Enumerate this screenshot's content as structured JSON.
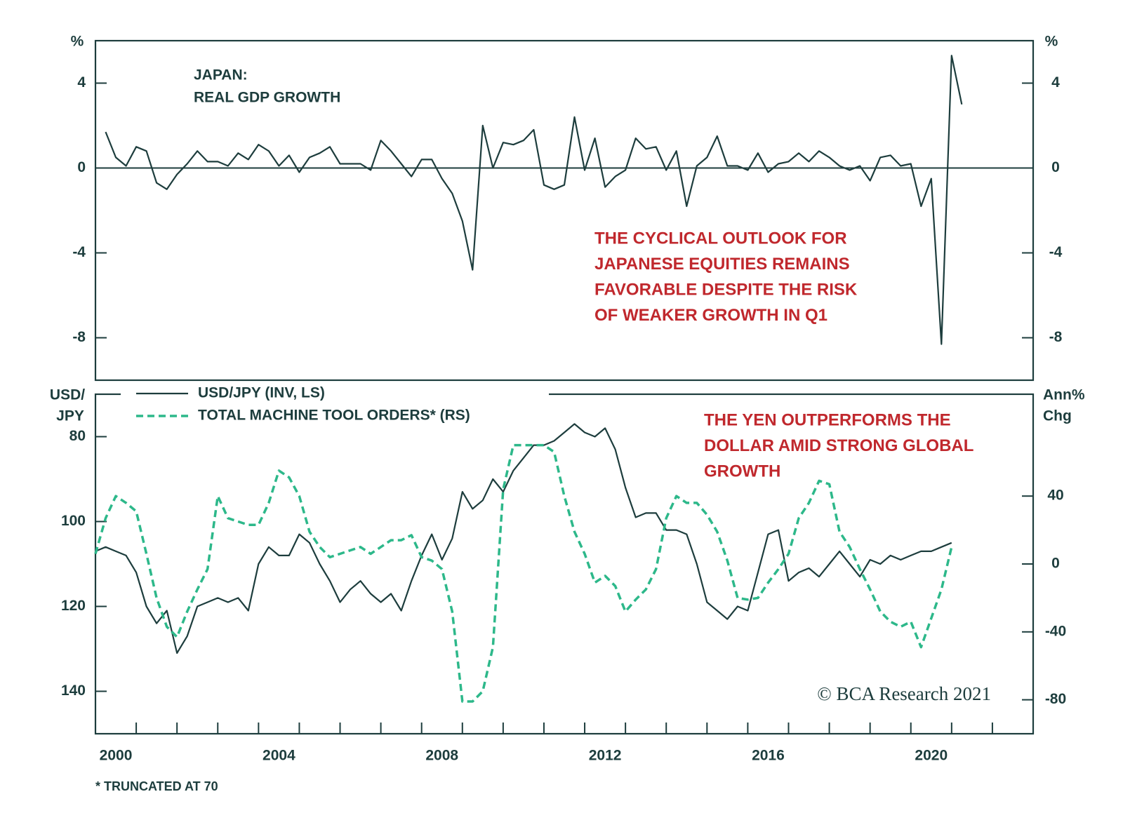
{
  "chart_data": [
    {
      "type": "line",
      "title": "JAPAN:",
      "subtitle": "REAL GDP GROWTH",
      "ylabel": "%",
      "y2label": "%",
      "annotation": [
        "THE CYCLICAL OUTLOOK FOR",
        "JAPANESE EQUITIES REMAINS",
        "FAVORABLE DESPITE THE RISK",
        "OF WEAKER GROWTH IN Q1"
      ],
      "xlim": [
        2000,
        2023
      ],
      "ylim": [
        -10,
        6
      ],
      "yticks": [
        -8,
        -4,
        0,
        4
      ],
      "y2lim": [
        -10,
        6
      ],
      "y2ticks": [
        -8,
        -4,
        0,
        4
      ],
      "zero_line": true,
      "x": [
        2000.25,
        2000.5,
        2000.75,
        2001,
        2001.25,
        2001.5,
        2001.75,
        2002,
        2002.25,
        2002.5,
        2002.75,
        2003,
        2003.25,
        2003.5,
        2003.75,
        2004,
        2004.25,
        2004.5,
        2004.75,
        2005,
        2005.25,
        2005.5,
        2005.75,
        2006,
        2006.25,
        2006.5,
        2006.75,
        2007,
        2007.25,
        2007.5,
        2007.75,
        2008,
        2008.25,
        2008.5,
        2008.75,
        2009,
        2009.25,
        2009.5,
        2009.75,
        2010,
        2010.25,
        2010.5,
        2010.75,
        2011,
        2011.25,
        2011.5,
        2011.75,
        2012,
        2012.25,
        2012.5,
        2012.75,
        2013,
        2013.25,
        2013.5,
        2013.75,
        2014,
        2014.25,
        2014.5,
        2014.75,
        2015,
        2015.25,
        2015.5,
        2015.75,
        2016,
        2016.25,
        2016.5,
        2016.75,
        2017,
        2017.25,
        2017.5,
        2017.75,
        2018,
        2018.25,
        2018.5,
        2018.75,
        2019,
        2019.25,
        2019.5,
        2019.75,
        2020,
        2020.25,
        2020.5,
        2020.75,
        2021,
        2021.25
      ],
      "series": [
        {
          "name": "REAL GDP GROWTH",
          "color": "#1d3d3d",
          "dash": false,
          "values": [
            1.7,
            0.5,
            0.1,
            1.0,
            0.8,
            -0.7,
            -1.0,
            -0.3,
            0.2,
            0.8,
            0.3,
            0.3,
            0.1,
            0.7,
            0.4,
            1.1,
            0.8,
            0.1,
            0.6,
            -0.2,
            0.5,
            0.7,
            1.0,
            0.2,
            0.2,
            0.2,
            -0.1,
            1.3,
            0.8,
            0.2,
            -0.4,
            0.4,
            0.4,
            -0.5,
            -1.2,
            -2.5,
            -4.8,
            2.0,
            0.0,
            1.2,
            1.1,
            1.3,
            1.8,
            -0.8,
            -1.0,
            -0.8,
            2.4,
            -0.1,
            1.4,
            -0.9,
            -0.4,
            -0.1,
            1.4,
            0.9,
            1.0,
            -0.1,
            0.8,
            -1.8,
            0.1,
            0.5,
            1.5,
            0.1,
            0.1,
            -0.1,
            0.7,
            -0.2,
            0.2,
            0.3,
            0.7,
            0.3,
            0.8,
            0.5,
            0.1,
            -0.1,
            0.1,
            -0.6,
            0.5,
            0.6,
            0.1,
            0.2,
            -1.8,
            -0.5,
            -8.3,
            5.3,
            3.0
          ]
        }
      ]
    },
    {
      "type": "line",
      "ylabel": [
        "USD/",
        "JPY"
      ],
      "y2label": [
        "Ann%",
        "Chg"
      ],
      "annotation": [
        "THE YEN OUTPERFORMS THE",
        "DOLLAR AMID STRONG GLOBAL",
        "GROWTH"
      ],
      "credit": "© BCA Research 2021",
      "footnote": "* TRUNCATED AT 70",
      "xlim": [
        2000,
        2023
      ],
      "xticks": [
        2001,
        2002,
        2003,
        2004,
        2005,
        2006,
        2007,
        2008,
        2009,
        2010,
        2011,
        2012,
        2013,
        2014,
        2015,
        2016,
        2017,
        2018,
        2019,
        2020,
        2021,
        2022
      ],
      "xtick_labels": [
        2000,
        2004,
        2008,
        2012,
        2016,
        2020
      ],
      "ylim": [
        70,
        150
      ],
      "y_inverted": true,
      "yticks": [
        80,
        100,
        120,
        140
      ],
      "y2lim": [
        -100,
        100
      ],
      "y2ticks": [
        -80,
        -40,
        0,
        40
      ],
      "x": [
        2000,
        2000.25,
        2000.5,
        2000.75,
        2001,
        2001.25,
        2001.5,
        2001.75,
        2002,
        2002.25,
        2002.5,
        2002.75,
        2003,
        2003.25,
        2003.5,
        2003.75,
        2004,
        2004.25,
        2004.5,
        2004.75,
        2005,
        2005.25,
        2005.5,
        2005.75,
        2006,
        2006.25,
        2006.5,
        2006.75,
        2007,
        2007.25,
        2007.5,
        2007.75,
        2008,
        2008.25,
        2008.5,
        2008.75,
        2009,
        2009.25,
        2009.5,
        2009.75,
        2010,
        2010.25,
        2010.5,
        2010.75,
        2011,
        2011.25,
        2011.5,
        2011.75,
        2012,
        2012.25,
        2012.5,
        2012.75,
        2013,
        2013.25,
        2013.5,
        2013.75,
        2014,
        2014.25,
        2014.5,
        2014.75,
        2015,
        2015.25,
        2015.5,
        2015.75,
        2016,
        2016.25,
        2016.5,
        2016.75,
        2017,
        2017.25,
        2017.5,
        2017.75,
        2018,
        2018.25,
        2018.5,
        2018.75,
        2019,
        2019.25,
        2019.5,
        2019.75,
        2020,
        2020.25,
        2020.5,
        2020.75,
        2021
      ],
      "series": [
        {
          "name": "USD/JPY (INV, LS)",
          "color": "#1d3d3d",
          "dash": false,
          "values": [
            107,
            106,
            107,
            108,
            112,
            120,
            124,
            121,
            131,
            127,
            120,
            119,
            118,
            119,
            118,
            121,
            110,
            106,
            108,
            108,
            103,
            105,
            110,
            114,
            119,
            116,
            114,
            117,
            119,
            117,
            121,
            114,
            108,
            103,
            109,
            104,
            93,
            97,
            95,
            90,
            93,
            88,
            85,
            82,
            82,
            81,
            79,
            77,
            79,
            80,
            78,
            83,
            92,
            99,
            98,
            98,
            102,
            102,
            103,
            110,
            119,
            121,
            123,
            120,
            121,
            112,
            103,
            102,
            114,
            112,
            111,
            113,
            110,
            107,
            110,
            113,
            109,
            110,
            108,
            109,
            108,
            107,
            107,
            106,
            105
          ]
        },
        {
          "name": "TOTAL MACHINE TOOL ORDERS* (RS)",
          "color": "#2db88a",
          "dash": true,
          "axis": "y2",
          "values": [
            6,
            27,
            40,
            36,
            31,
            6,
            -20,
            -37,
            -43,
            -28,
            -15,
            -3,
            40,
            27,
            25,
            23,
            23,
            36,
            55,
            51,
            40,
            19,
            10,
            4,
            6,
            8,
            10,
            6,
            10,
            14,
            14,
            17,
            4,
            2,
            -3,
            -28,
            -81,
            -81,
            -75,
            -49,
            44,
            70,
            70,
            70,
            70,
            66,
            40,
            19,
            6,
            -11,
            -7,
            -13,
            -28,
            -21,
            -15,
            -3,
            27,
            40,
            36,
            36,
            29,
            19,
            2,
            -20,
            -21,
            -20,
            -11,
            -3,
            6,
            27,
            36,
            49,
            47,
            19,
            10,
            -3,
            -15,
            -28,
            -34,
            -37,
            -34,
            -49,
            -32,
            -15,
            10
          ]
        }
      ]
    }
  ]
}
